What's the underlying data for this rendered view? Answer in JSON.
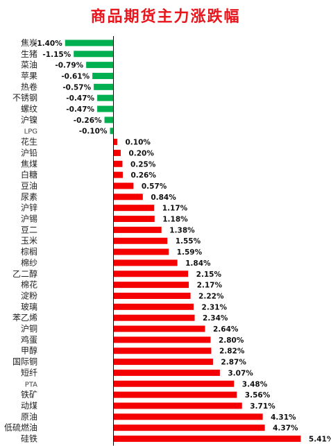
{
  "chart_data": {
    "type": "bar",
    "orientation": "horizontal",
    "title": "商品期货主力涨跌幅",
    "xlabel": "",
    "ylabel": "",
    "categories": [
      "焦炭",
      "生猪",
      "菜油",
      "苹果",
      "热卷",
      "不锈钢",
      "螺纹",
      "沪镍",
      "LPG",
      "花生",
      "沪铅",
      "焦煤",
      "白糖",
      "豆油",
      "尿素",
      "沪锌",
      "沪锡",
      "豆二",
      "玉米",
      "棕榈",
      "棉纱",
      "乙二醇",
      "棉花",
      "淀粉",
      "玻璃",
      "苯乙烯",
      "沪铜",
      "鸡蛋",
      "甲醇",
      "国际铜",
      "短纤",
      "PTA",
      "铁矿",
      "动煤",
      "原油",
      "低硫燃油",
      "硅铁"
    ],
    "values": [
      -1.4,
      -1.15,
      -0.79,
      -0.61,
      -0.57,
      -0.47,
      -0.47,
      -0.26,
      -0.1,
      0.1,
      0.2,
      0.25,
      0.26,
      0.57,
      0.84,
      1.17,
      1.18,
      1.38,
      1.55,
      1.59,
      1.84,
      2.15,
      2.17,
      2.22,
      2.31,
      2.34,
      2.64,
      2.8,
      2.82,
      2.87,
      3.07,
      3.48,
      3.56,
      3.71,
      4.31,
      4.37,
      5.41
    ],
    "labels": [
      "-1.40%",
      "-1.15%",
      "-0.79%",
      "-0.61%",
      "-0.57%",
      "-0.47%",
      "-0.47%",
      "-0.26%",
      "-0.10%",
      "0.10%",
      "0.20%",
      "0.25%",
      "0.26%",
      "0.57%",
      "0.84%",
      "1.17%",
      "1.18%",
      "1.38%",
      "1.55%",
      "1.59%",
      "1.84%",
      "2.15%",
      "2.17%",
      "2.22%",
      "2.31%",
      "2.34%",
      "2.64%",
      "2.80%",
      "2.82%",
      "2.87%",
      "3.07%",
      "3.48%",
      "3.56%",
      "3.71%",
      "4.31%",
      "4.37%",
      "5.41%"
    ],
    "colors": {
      "positive": "#f50000",
      "negative": "#00b050",
      "title": "#e8151c"
    },
    "grid": false,
    "legend": "none"
  }
}
